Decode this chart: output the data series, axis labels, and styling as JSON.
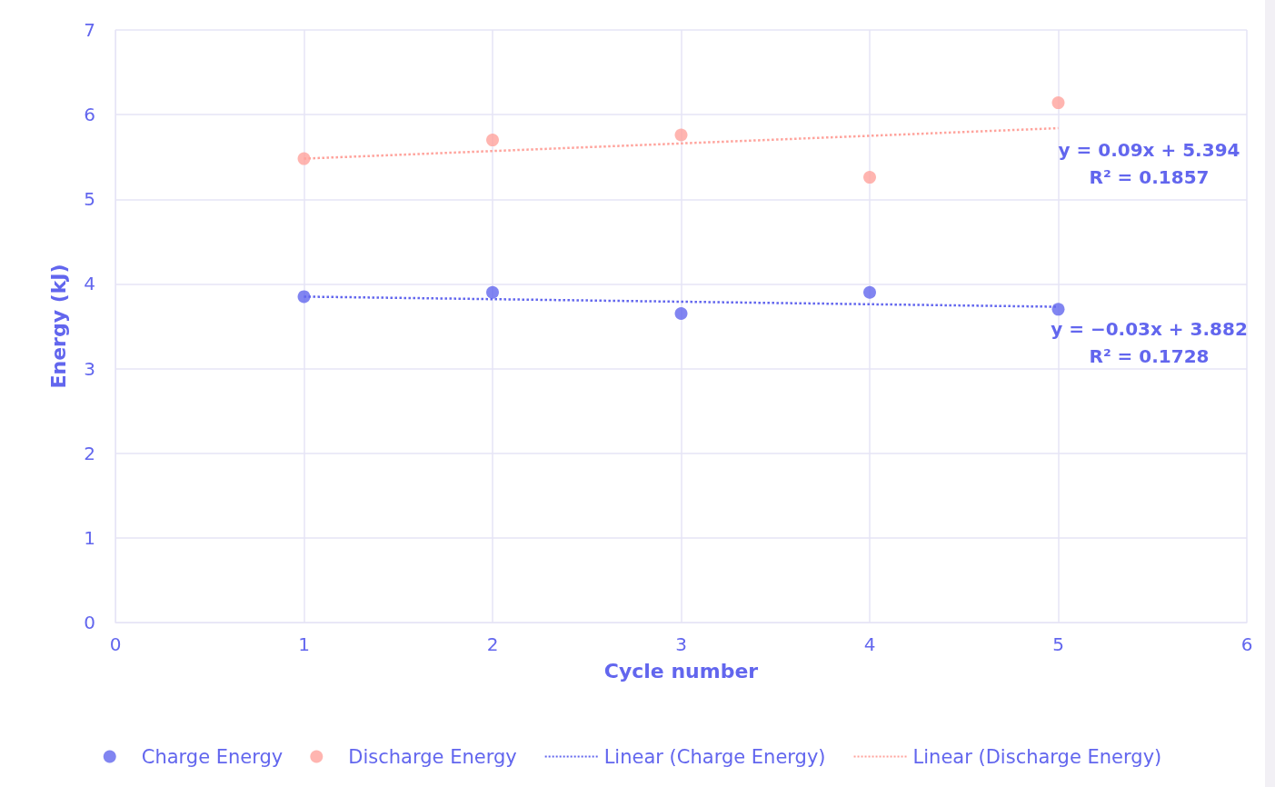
{
  "chart_data": {
    "type": "scatter",
    "xlabel": "Cycle number",
    "ylabel": "Energy (kJ)",
    "xlim": [
      0,
      6
    ],
    "xticks": [
      0,
      1,
      2,
      3,
      4,
      5,
      6
    ],
    "ylim": [
      0,
      7
    ],
    "yticks": [
      0,
      1,
      2,
      3,
      4,
      5,
      6,
      7
    ],
    "grid": true,
    "legend": "bottom",
    "marker": "circle",
    "series": [
      {
        "name": "Charge Energy",
        "color": "#6266ee",
        "x": [
          1,
          2,
          3,
          4,
          5
        ],
        "values": [
          3.85,
          3.9,
          3.65,
          3.9,
          3.7
        ]
      },
      {
        "name": "Discharge Energy",
        "color": "#ffa39c",
        "x": [
          1,
          2,
          3,
          4,
          5
        ],
        "values": [
          5.48,
          5.7,
          5.76,
          5.26,
          6.14
        ]
      },
      {
        "name": "Linear (Charge Energy)",
        "type": "line",
        "line_style": "dotted",
        "marker": "none",
        "color": "#6266ee",
        "x": [
          1,
          5
        ],
        "values": [
          3.85,
          3.73
        ]
      },
      {
        "name": "Linear (Discharge Energy)",
        "type": "line",
        "line_style": "dotted",
        "marker": "none",
        "color": "#ffa39c",
        "x": [
          1,
          5
        ],
        "values": [
          5.48,
          5.84
        ]
      }
    ],
    "annotations": [
      "y = 0.09x + 5.394",
      "R² = 0.1857",
      "y = −0.03x + 3.882",
      "R² = 0.1728"
    ]
  }
}
